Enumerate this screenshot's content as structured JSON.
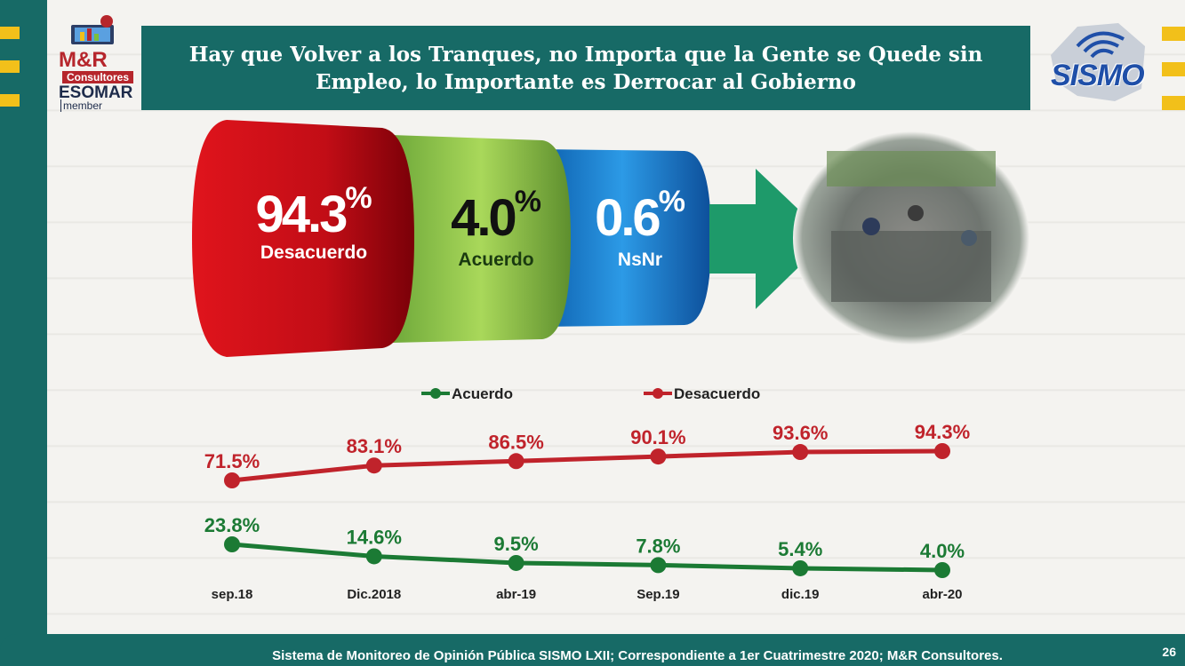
{
  "header": {
    "title": "Hay que Volver a los Tranques, no Importa que la Gente se Quede sin Empleo, lo Importante es Derrocar al Gobierno"
  },
  "logos": {
    "mr_name": "M&R",
    "mr_sub": "Consultores",
    "esomar": "ESOMAR",
    "member": "member",
    "sismo": "SISMO"
  },
  "summary": {
    "desacuerdo": {
      "value": "94.3",
      "unit": "%",
      "label": "Desacuerdo",
      "color": "#c8101c"
    },
    "acuerdo": {
      "value": "4.0",
      "unit": "%",
      "label": "Acuerdo",
      "color": "#7dbf3a"
    },
    "nsnr": {
      "value": "0.6",
      "unit": "%",
      "label": "NsNr",
      "color": "#1a78d0"
    }
  },
  "chart_data": {
    "type": "line",
    "categories": [
      "sep.18",
      "Dic.2018",
      "abr-19",
      "Sep.19",
      "dic.19",
      "abr-20"
    ],
    "series": [
      {
        "name": "Acuerdo",
        "values": [
          23.8,
          14.6,
          9.5,
          7.8,
          5.4,
          4.0
        ],
        "labels": [
          "23.8%",
          "14.6%",
          "9.5%",
          "7.8%",
          "5.4%",
          "4.0%"
        ],
        "color": "#1b7a34"
      },
      {
        "name": "Desacuerdo",
        "values": [
          71.5,
          83.1,
          86.5,
          90.1,
          93.6,
          94.3
        ],
        "labels": [
          "71.5%",
          "83.1%",
          "86.5%",
          "90.1%",
          "93.6%",
          "94.3%"
        ],
        "color": "#c0232b"
      }
    ],
    "legend_position": "top",
    "grid": false
  },
  "footer": {
    "source": "Sistema de Monitoreo de Opinión Pública SISMO LXII; Correspondiente a 1er Cuatrimestre 2020; M&R Consultores.",
    "page": "26"
  }
}
